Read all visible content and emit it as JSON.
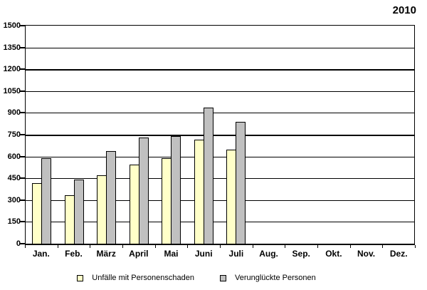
{
  "chart_data": {
    "type": "bar",
    "title": "2010",
    "categories": [
      "Jan.",
      "Feb.",
      "März",
      "April",
      "Mai",
      "Juni",
      "Juli",
      "Aug.",
      "Sep.",
      "Okt.",
      "Nov.",
      "Dez."
    ],
    "series": [
      {
        "name": "Unfälle mit Personenschaden",
        "color": "#FFFFC8",
        "values": [
          415,
          335,
          470,
          545,
          590,
          715,
          645,
          null,
          null,
          null,
          null,
          null
        ]
      },
      {
        "name": "Verunglückte Personen",
        "color": "#C0C0C0",
        "values": [
          590,
          440,
          635,
          730,
          740,
          935,
          840,
          null,
          null,
          null,
          null,
          null
        ]
      }
    ],
    "ylim": [
      0,
      1500
    ],
    "ytick_step": 150,
    "ytick_labels": [
      "0",
      "150",
      "300",
      "450",
      "600",
      "750",
      "900",
      "1050",
      "1200",
      "1350",
      "1500"
    ],
    "grid": "horizontal",
    "legend_position": "bottom",
    "axis_color": "#000000",
    "background_color": "#FFFFFF"
  }
}
